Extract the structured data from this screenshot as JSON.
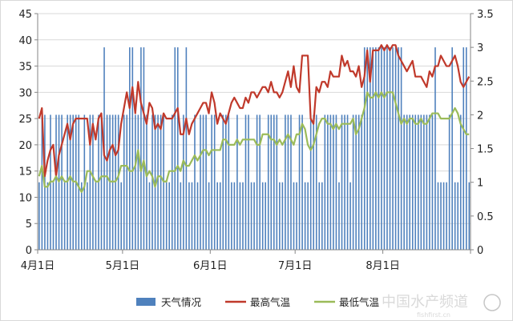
{
  "chart_data": {
    "type": "bar+line",
    "left_axis": {
      "min": 0,
      "max": 45,
      "step": 5,
      "ticks": [
        "0",
        "5",
        "10",
        "15",
        "20",
        "25",
        "30",
        "35",
        "40",
        "45"
      ]
    },
    "right_axis": {
      "min": 0,
      "max": 3.5,
      "step": 0.5,
      "ticks": [
        "0",
        "0.5",
        "1",
        "1.5",
        "2",
        "2.5",
        "3",
        "3.5"
      ]
    },
    "x_axis": {
      "days": 153,
      "tick_labels": [
        "4月1日",
        "5月1日",
        "6月1日",
        "7月1日",
        "8月1日"
      ],
      "tick_days": [
        0,
        30,
        61,
        91,
        122
      ]
    },
    "series": [
      {
        "name": "天气情况",
        "kind": "bar",
        "axis": "right",
        "color": "#4f81bd",
        "values": [
          1,
          2,
          2,
          1,
          2,
          1,
          2,
          2,
          2,
          1,
          2,
          2,
          2,
          2,
          2,
          1,
          2,
          1,
          2,
          2,
          1,
          2,
          2,
          3,
          2,
          2,
          2,
          2,
          2,
          1,
          2,
          2,
          3,
          3,
          2,
          2,
          3,
          3,
          2,
          1,
          2,
          2,
          2,
          2,
          2,
          1,
          1,
          2,
          3,
          3,
          1,
          2,
          3,
          1,
          1,
          2,
          1,
          2,
          2,
          2,
          1,
          2,
          2,
          1,
          1,
          2,
          2,
          2,
          1,
          1,
          2,
          1,
          1,
          2,
          2,
          1,
          1,
          2,
          2,
          1,
          1,
          2,
          2,
          2,
          2,
          1,
          1,
          2,
          2,
          2,
          1,
          1,
          2,
          2,
          1,
          1,
          2,
          2,
          2,
          1,
          1,
          2,
          2,
          2,
          2,
          2,
          1,
          2,
          2,
          2,
          1,
          2,
          2,
          2,
          2,
          3,
          3,
          3,
          3,
          3,
          3,
          3,
          3,
          3,
          3,
          3,
          3,
          3,
          3,
          2,
          2,
          2,
          2,
          2,
          2,
          2,
          2,
          2,
          2,
          2,
          3,
          1,
          1,
          1,
          1,
          2,
          3,
          1,
          1,
          2,
          3,
          3,
          1
        ]
      },
      {
        "name": "最高气温",
        "kind": "line",
        "axis": "left",
        "color": "#c0392b",
        "values": [
          25,
          27,
          14,
          17,
          19,
          20,
          14,
          18,
          20,
          22,
          24,
          21,
          24,
          25,
          25,
          25,
          25,
          25,
          20,
          24,
          21,
          25,
          26,
          18,
          17,
          19,
          20,
          18,
          19,
          24,
          27,
          30,
          27,
          31,
          26,
          32,
          28,
          26,
          24,
          28,
          27,
          23,
          24,
          23,
          26,
          25,
          25,
          25,
          26,
          27,
          22,
          22,
          25,
          22,
          24,
          25,
          26,
          27,
          28,
          28,
          26,
          30,
          28,
          24,
          26,
          25,
          24,
          26,
          28,
          29,
          28,
          27,
          27,
          29,
          28,
          30,
          30,
          29,
          30,
          31,
          31,
          30,
          32,
          30,
          30,
          29,
          30,
          32,
          34,
          31,
          35,
          31,
          30,
          37,
          37,
          37,
          25,
          24,
          31,
          30,
          32,
          32,
          31,
          34,
          33,
          33,
          33,
          37,
          35,
          36,
          34,
          34,
          33,
          35,
          31,
          33,
          38,
          32,
          38,
          38,
          38,
          39,
          38,
          39,
          38,
          39,
          39,
          37,
          36,
          35,
          34,
          35,
          36,
          33,
          33,
          33,
          32,
          31,
          34,
          33,
          35,
          35,
          37,
          36,
          35,
          35,
          36,
          37,
          35,
          32,
          31,
          32,
          33
        ]
      },
      {
        "name": "最低气温",
        "kind": "line",
        "axis": "left",
        "color": "#9bbb59",
        "values": [
          14,
          16,
          12,
          12,
          13,
          13,
          14,
          13,
          14,
          13,
          13,
          14,
          13,
          13,
          12,
          11,
          12,
          15,
          15,
          14,
          13,
          13,
          14,
          14,
          14,
          13,
          13,
          13,
          14,
          16,
          16,
          16,
          15,
          15,
          16,
          19,
          15,
          17,
          14,
          15,
          14,
          12,
          14,
          14,
          13,
          13,
          15,
          15,
          15,
          16,
          15,
          17,
          16,
          16,
          17,
          18,
          17,
          18,
          19,
          19,
          18,
          19,
          19,
          19,
          19,
          21,
          21,
          20,
          20,
          20,
          21,
          20,
          21,
          21,
          21,
          21,
          21,
          20,
          20,
          22,
          22,
          22,
          21,
          21,
          20,
          21,
          20,
          21,
          22,
          21,
          20,
          22,
          22,
          24,
          23,
          20,
          19,
          20,
          22,
          24,
          25,
          25,
          24,
          24,
          23,
          24,
          23,
          24,
          24,
          24,
          24,
          25,
          22,
          23,
          25,
          27,
          30,
          29,
          29,
          30,
          29,
          30,
          29,
          30,
          30,
          30,
          28,
          26,
          24,
          25,
          24,
          25,
          25,
          24,
          24,
          25,
          24,
          24,
          25,
          26,
          26,
          26,
          25,
          25,
          25,
          25,
          26,
          27,
          26,
          24,
          23,
          22,
          22
        ]
      }
    ],
    "legend": {
      "placement": "bottom",
      "items": [
        "天气情况",
        "最高气温",
        "最低气温"
      ]
    }
  },
  "watermark": {
    "text": "中国水产频道",
    "subtext": "fishfirst.cn"
  }
}
